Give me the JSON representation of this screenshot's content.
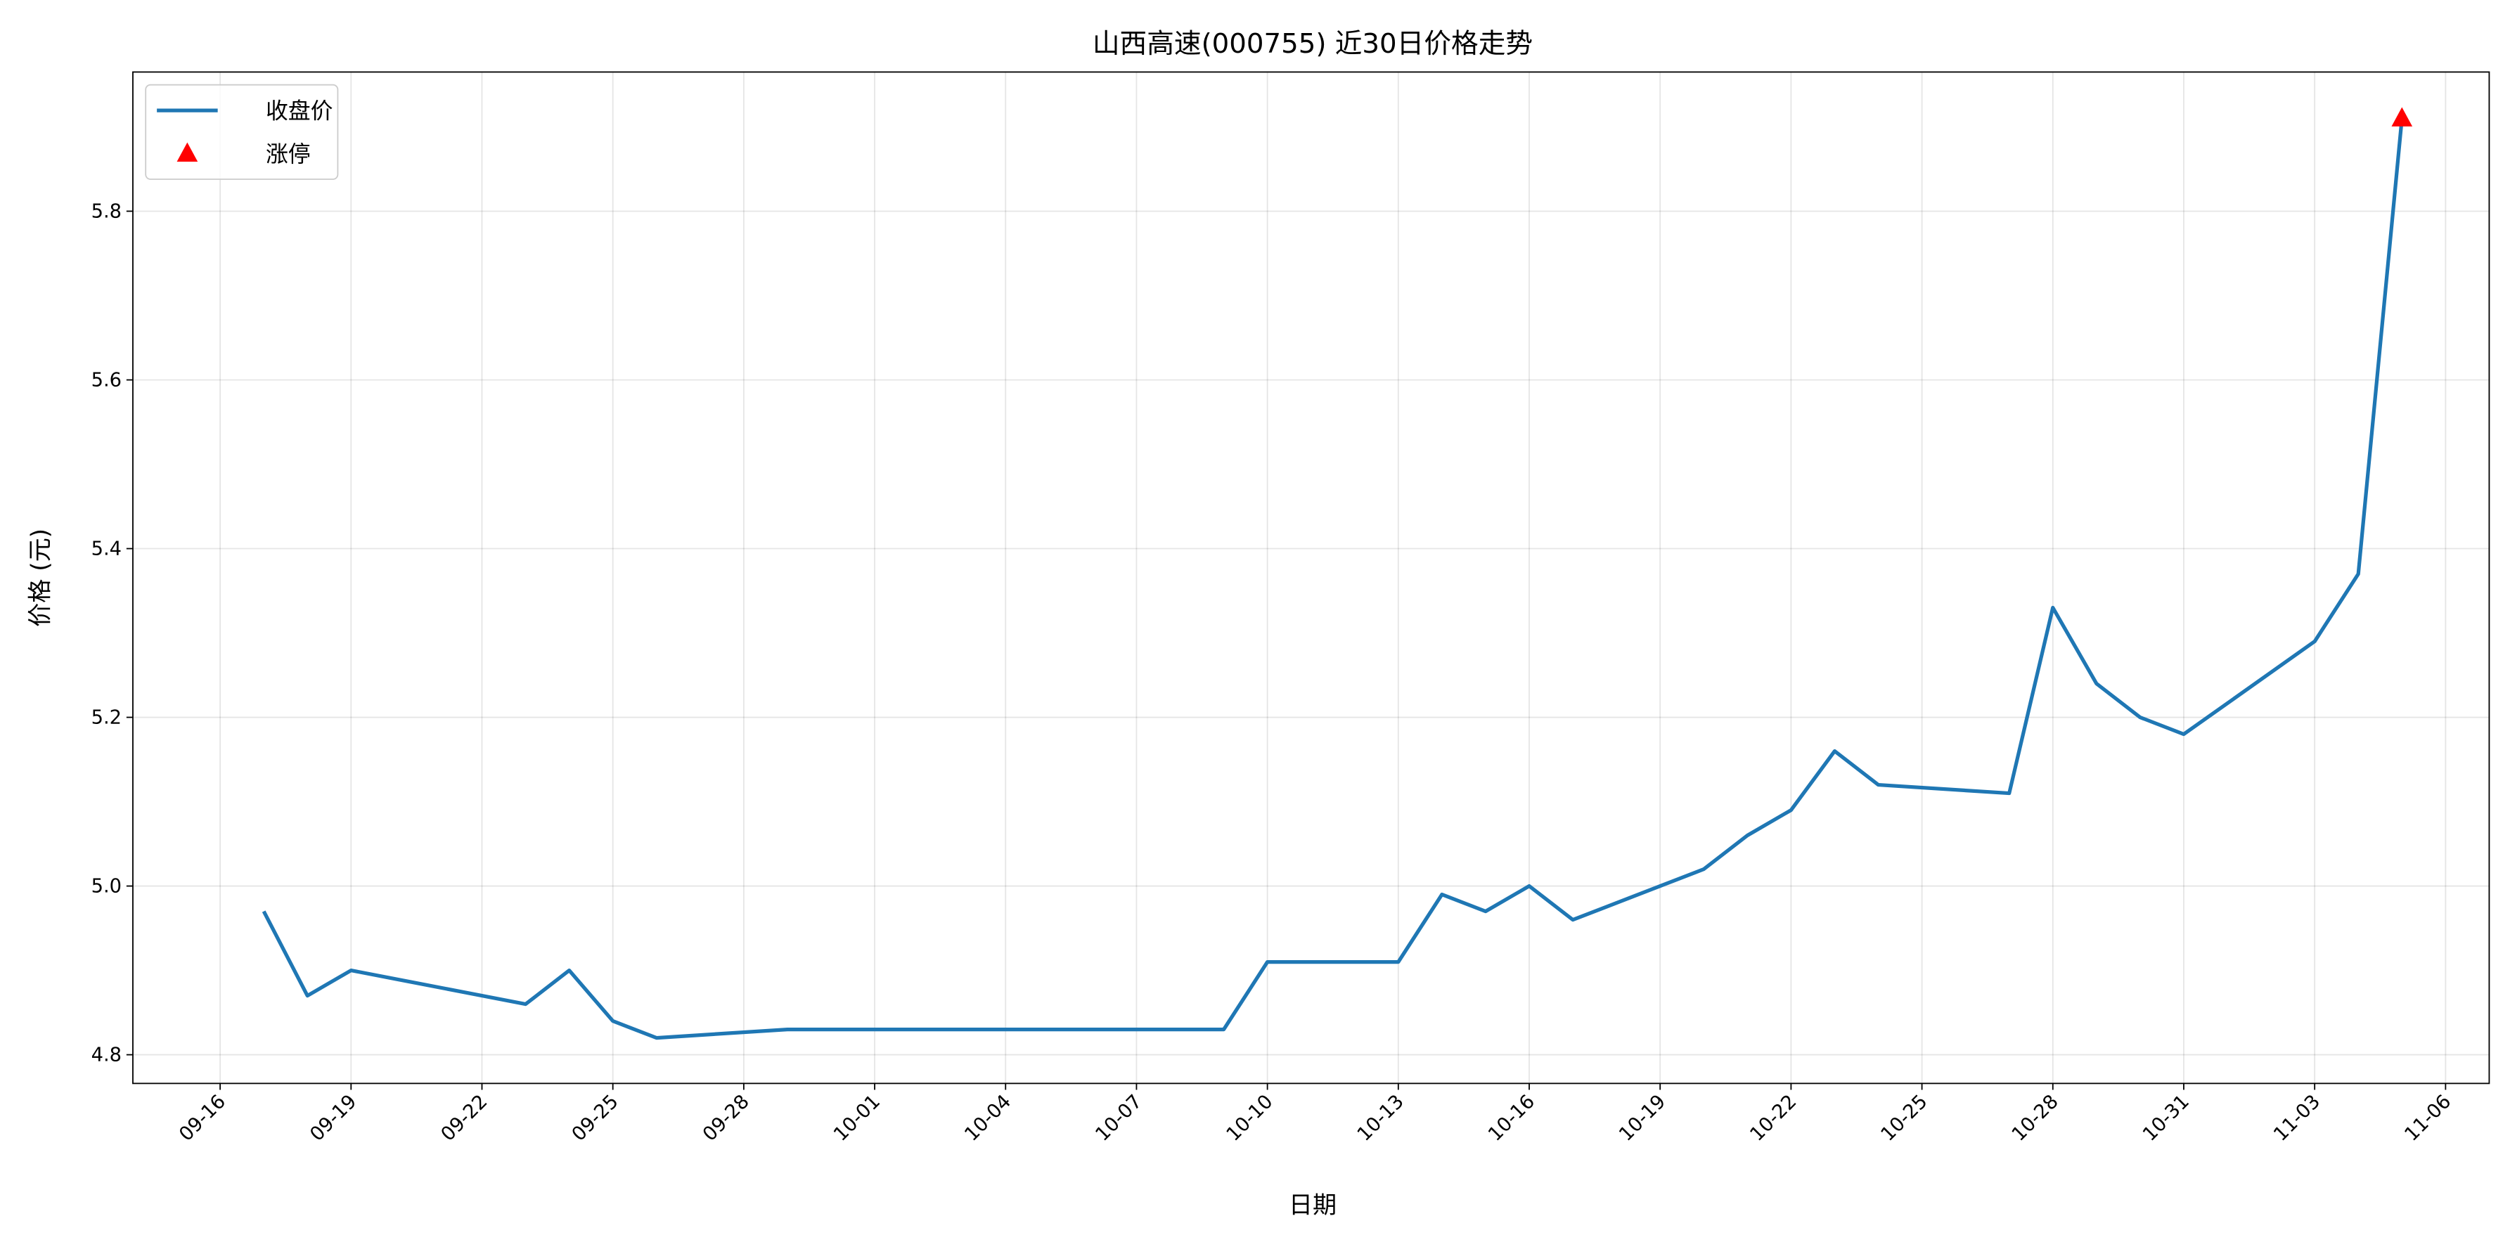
{
  "chart_data": {
    "type": "line",
    "title": "山西高速(000755) 近30日价格走势",
    "xlabel": "日期",
    "ylabel": "价格 (元)",
    "series": [
      {
        "name": "收盘价",
        "color": "#1f77b4",
        "type": "line",
        "x": [
          "09-17",
          "09-18",
          "09-19",
          "09-23",
          "09-24",
          "09-25",
          "09-26",
          "09-29",
          "10-09",
          "10-10",
          "10-13",
          "10-14",
          "10-15",
          "10-16",
          "10-17",
          "10-20",
          "10-21",
          "10-22",
          "10-23",
          "10-24",
          "10-27",
          "10-28",
          "10-29",
          "10-30",
          "10-31",
          "11-03",
          "11-04",
          "11-05"
        ],
        "values": [
          4.97,
          4.87,
          4.9,
          4.86,
          4.9,
          4.84,
          4.82,
          4.83,
          4.83,
          4.91,
          4.91,
          4.99,
          4.97,
          5.0,
          4.96,
          5.02,
          5.06,
          5.09,
          5.16,
          5.12,
          5.11,
          5.33,
          5.24,
          5.2,
          5.18,
          5.29,
          5.37,
          5.91
        ]
      },
      {
        "name": "涨停",
        "color": "#ff0000",
        "type": "scatter",
        "x": [
          "11-05"
        ],
        "values": [
          5.91
        ]
      }
    ],
    "xlim": [
      "09-14",
      "11-07"
    ],
    "xticks": [
      "09-16",
      "09-19",
      "09-22",
      "09-25",
      "09-28",
      "10-01",
      "10-04",
      "10-07",
      "10-10",
      "10-13",
      "10-16",
      "10-19",
      "10-22",
      "10-25",
      "10-28",
      "10-31",
      "11-03",
      "11-06"
    ],
    "ylim": [
      4.766,
      5.965
    ],
    "yticks": [
      4.8,
      {
        "value": 5,
        "label": "5.0"
      },
      5.2,
      5.4,
      5.6,
      5.8
    ],
    "grid": true,
    "legend": "upper-left"
  }
}
